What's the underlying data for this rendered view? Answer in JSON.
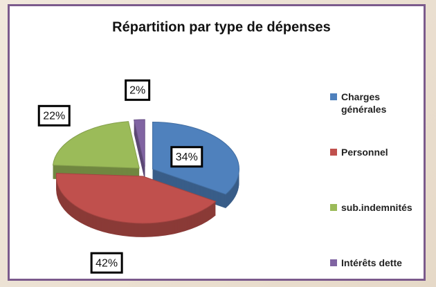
{
  "chart_data": {
    "type": "pie",
    "title": "Répartition par type de dépenses",
    "categories": [
      "Charges générales",
      "Personnel",
      "sub.indemnités",
      "Intérêts dette"
    ],
    "values": [
      34,
      42,
      22,
      2
    ],
    "value_labels": [
      "34%",
      "42%",
      "22%",
      "2%"
    ],
    "colors": [
      "#4f81bd",
      "#c0504d",
      "#9bbb59",
      "#8064a2"
    ],
    "legend": "right"
  }
}
